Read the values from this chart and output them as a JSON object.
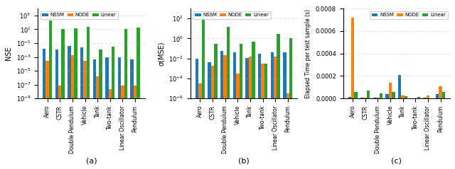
{
  "categories": [
    "Aero",
    "CSTR",
    "Double Pendulum",
    "Vehicle",
    "Tank",
    "Two-tank",
    "Linear Oscillator",
    "Pendulum"
  ],
  "nse": {
    "NSSM": [
      0.015,
      0.012,
      0.04,
      0.025,
      0.0004,
      0.0008,
      0.0008,
      0.0004
    ],
    "NODE": [
      0.0003,
      8e-08,
      0.002,
      0.0003,
      1.5e-06,
      2e-08,
      8e-08,
      8e-08
    ],
    "Linear": [
      200.0,
      10.0,
      13.0,
      25.0,
      0.012,
      0.03,
      12.0,
      20.0
    ]
  },
  "rmse": {
    "NSSM": [
      0.009,
      0.004,
      0.06,
      0.04,
      0.012,
      0.03,
      0.04,
      0.04
    ],
    "NODE": [
      3e-05,
      0.002,
      0.02,
      0.0003,
      0.015,
      0.003,
      0.015,
      3e-06
    ],
    "Linear": [
      120.0,
      0.3,
      15.0,
      0.3,
      0.5,
      0.003,
      3.0,
      1.0
    ]
  },
  "time": {
    "NSSM": [
      1.5e-05,
      5e-06,
      1e-05,
      4e-05,
      0.00021,
      2e-06,
      5e-06,
      4e-05
    ],
    "NODE": [
      0.00072,
      1e-05,
      5e-06,
      0.00014,
      2.5e-05,
      3e-06,
      2.5e-05,
      0.00011
    ],
    "Linear": [
      6e-05,
      7e-05,
      4.5e-05,
      6e-05,
      2e-05,
      1.5e-05,
      3e-06,
      6e-05
    ]
  },
  "colors": {
    "NSSM": "#1f77b4",
    "NODE": "#ff7f0e",
    "Linear": "#2ca02c"
  },
  "ylabel_nse": "NSE",
  "ylabel_rmse": "σ(MSE)",
  "ylabel_time": "Elapsed Time per test sample (s)",
  "label_a": "(a)",
  "label_b": "(b)",
  "label_c": "(c)",
  "ylim_nse": [
    1e-09,
    10000.0
  ],
  "ylim_rmse": [
    1e-06,
    1000.0
  ],
  "ylim_time": [
    0,
    0.0008
  ]
}
